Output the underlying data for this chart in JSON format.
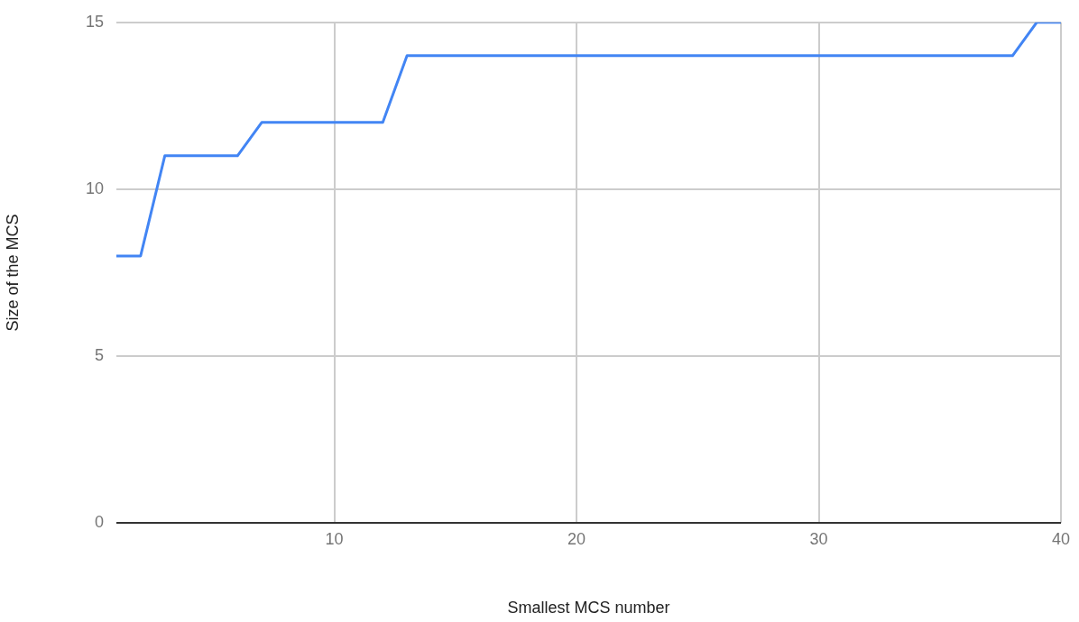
{
  "chart_data": {
    "type": "line",
    "xlabel": "Smallest MCS number",
    "ylabel": "Size of the MCS",
    "x": [
      1,
      2,
      3,
      6,
      7,
      12,
      13,
      38,
      39,
      40
    ],
    "series": [
      {
        "color": "#4285f4",
        "values": [
          8,
          8,
          11,
          11,
          12,
          12,
          14,
          14,
          15,
          15
        ]
      }
    ],
    "xlim": [
      1,
      40
    ],
    "xticks": [
      10,
      20,
      30,
      40
    ],
    "ylim": [
      0,
      15
    ],
    "yticks": [
      0,
      5,
      10,
      15
    ],
    "grid": true,
    "marker": "none",
    "line_style": "solid"
  }
}
